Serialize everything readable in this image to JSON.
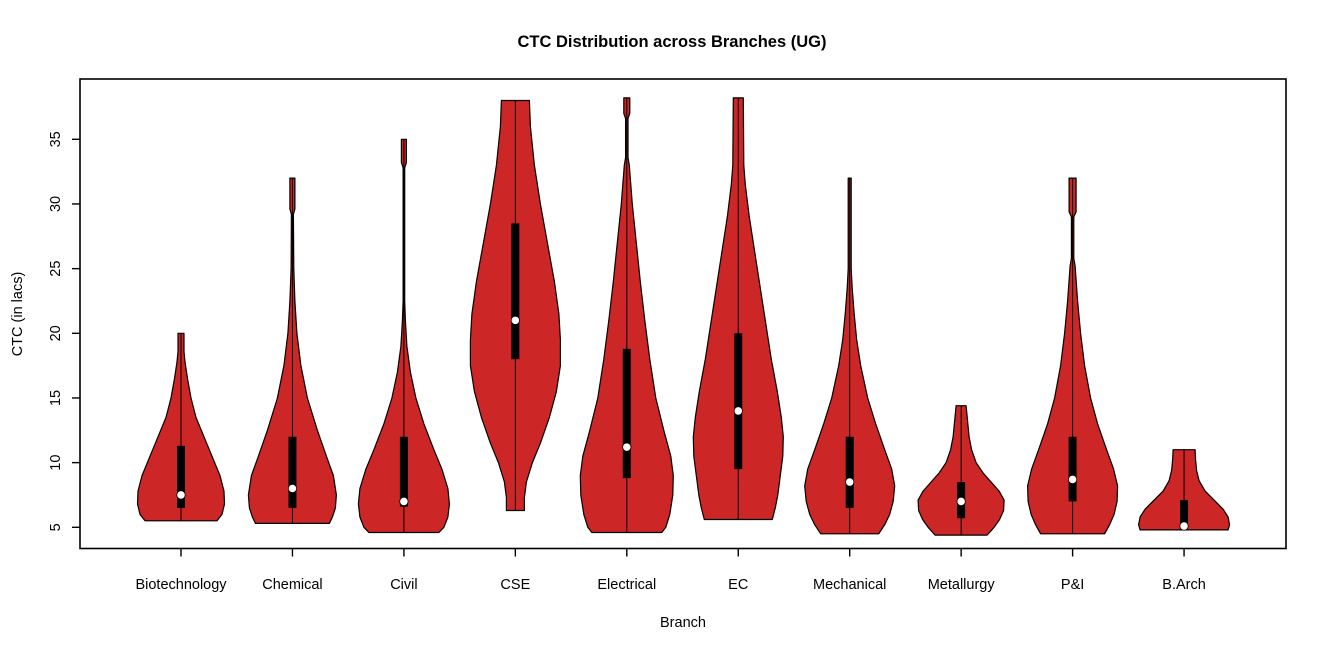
{
  "window": {
    "background": "#ffffff"
  },
  "chart_data": {
    "type": "violin",
    "title": "CTC Distribution across Branches (UG)",
    "xlabel": "Branch",
    "ylabel": "CTC (in lacs)",
    "yticks": [
      5,
      10,
      15,
      20,
      25,
      30,
      35
    ],
    "ylim_drawn": [
      3.4,
      39.7
    ],
    "grid": false,
    "legend": "none",
    "violin_fill": "#CD2626",
    "violin_border": "#000000",
    "median_dot_color": "#ffffff",
    "box_color": "#000000",
    "categories": [
      "Biotechnology",
      "Chemical",
      "Civil",
      "CSE",
      "Electrical",
      "EC",
      "Mechanical",
      "Metallurgy",
      "P&I",
      "B.Arch"
    ],
    "series": [
      {
        "name": "Biotechnology",
        "stats": {
          "min": 5.5,
          "q1": 6.5,
          "median": 7.5,
          "q3": 11.3,
          "max": 20
        },
        "profile": [
          [
            20,
            3
          ],
          [
            18.6,
            3
          ],
          [
            17.8,
            4
          ],
          [
            16.5,
            6.5
          ],
          [
            15,
            10
          ],
          [
            13.5,
            15
          ],
          [
            12,
            23
          ],
          [
            10.5,
            31
          ],
          [
            9,
            39
          ],
          [
            7.8,
            43
          ],
          [
            6.8,
            43.5
          ],
          [
            6,
            41
          ],
          [
            5.5,
            36
          ]
        ]
      },
      {
        "name": "Chemical",
        "stats": {
          "min": 5.3,
          "q1": 6.5,
          "median": 8,
          "q3": 12,
          "max": 32
        },
        "profile": [
          [
            32,
            2.5
          ],
          [
            29.6,
            2.5
          ],
          [
            29.2,
            1
          ],
          [
            25,
            1.3
          ],
          [
            22.5,
            2.5
          ],
          [
            20,
            4.5
          ],
          [
            17.5,
            8.5
          ],
          [
            15,
            15
          ],
          [
            12.5,
            25
          ],
          [
            10.5,
            34
          ],
          [
            9,
            41
          ],
          [
            7.5,
            44
          ],
          [
            6.5,
            43
          ],
          [
            5.8,
            40
          ],
          [
            5.3,
            37
          ]
        ]
      },
      {
        "name": "Civil",
        "stats": {
          "min": 4.6,
          "q1": 6.6,
          "median": 7,
          "q3": 12,
          "max": 35
        },
        "profile": [
          [
            35,
            2.5
          ],
          [
            33.2,
            2.5
          ],
          [
            32.8,
            0.8
          ],
          [
            22.5,
            0.8
          ],
          [
            21,
            1.5
          ],
          [
            19,
            3
          ],
          [
            17,
            6.5
          ],
          [
            15,
            12
          ],
          [
            13,
            20
          ],
          [
            11,
            30
          ],
          [
            9.5,
            38
          ],
          [
            8,
            44
          ],
          [
            6.8,
            45.5
          ],
          [
            5.8,
            44
          ],
          [
            5,
            40
          ],
          [
            4.6,
            35
          ]
        ]
      },
      {
        "name": "CSE",
        "stats": {
          "min": 6.3,
          "q1": 18,
          "median": 21,
          "q3": 28.5,
          "max": 38
        },
        "profile": [
          [
            38,
            14
          ],
          [
            36,
            15
          ],
          [
            33,
            19
          ],
          [
            30,
            25
          ],
          [
            27,
            32
          ],
          [
            24,
            39
          ],
          [
            21.5,
            43.5
          ],
          [
            19.5,
            45
          ],
          [
            17.5,
            45
          ],
          [
            15.5,
            41
          ],
          [
            13.5,
            34
          ],
          [
            11.5,
            25
          ],
          [
            10,
            17
          ],
          [
            8.5,
            11
          ],
          [
            7.3,
            9
          ],
          [
            6.3,
            9
          ]
        ]
      },
      {
        "name": "Electrical",
        "stats": {
          "min": 4.6,
          "q1": 8.8,
          "median": 11.2,
          "q3": 18.8,
          "max": 38
        },
        "profile": [
          [
            38.2,
            3
          ],
          [
            37,
            3
          ],
          [
            36.6,
            1.2
          ],
          [
            33.6,
            1.2
          ],
          [
            33,
            2.5
          ],
          [
            30,
            5.5
          ],
          [
            27,
            9.5
          ],
          [
            24,
            13.5
          ],
          [
            21,
            18
          ],
          [
            18,
            23
          ],
          [
            15,
            29
          ],
          [
            12.5,
            37
          ],
          [
            10.5,
            44
          ],
          [
            9,
            46.5
          ],
          [
            7.5,
            46
          ],
          [
            6,
            43
          ],
          [
            5,
            39
          ],
          [
            4.6,
            35
          ]
        ]
      },
      {
        "name": "EC",
        "stats": {
          "min": 5.6,
          "q1": 9.5,
          "median": 14,
          "q3": 20,
          "max": 38
        },
        "profile": [
          [
            38.2,
            5
          ],
          [
            33,
            5.5
          ],
          [
            31.5,
            7
          ],
          [
            29,
            11
          ],
          [
            26.5,
            16
          ],
          [
            24,
            21
          ],
          [
            21,
            27
          ],
          [
            18,
            33
          ],
          [
            15.5,
            39
          ],
          [
            13.5,
            43
          ],
          [
            12,
            45
          ],
          [
            10.5,
            44.5
          ],
          [
            9,
            42
          ],
          [
            7.5,
            39.5
          ],
          [
            6.5,
            37
          ],
          [
            5.6,
            34
          ]
        ]
      },
      {
        "name": "Mechanical",
        "stats": {
          "min": 4.5,
          "q1": 6.5,
          "median": 8.5,
          "q3": 12,
          "max": 32
        },
        "profile": [
          [
            32,
            1.5
          ],
          [
            25,
            1.5
          ],
          [
            23.5,
            2.5
          ],
          [
            21.5,
            4.5
          ],
          [
            19.5,
            7
          ],
          [
            17.5,
            11
          ],
          [
            15,
            18
          ],
          [
            13,
            26
          ],
          [
            11,
            35
          ],
          [
            9.5,
            42
          ],
          [
            8.2,
            45
          ],
          [
            7,
            43.5
          ],
          [
            6,
            40
          ],
          [
            5.2,
            35
          ],
          [
            4.5,
            29
          ]
        ]
      },
      {
        "name": "Metallurgy",
        "stats": {
          "min": 4.4,
          "q1": 5.7,
          "median": 7,
          "q3": 8.5,
          "max": 14.4
        },
        "profile": [
          [
            14.4,
            5
          ],
          [
            13.2,
            6.5
          ],
          [
            12,
            8
          ],
          [
            11,
            10.5
          ],
          [
            10,
            15
          ],
          [
            9.2,
            22
          ],
          [
            8.5,
            30
          ],
          [
            7.8,
            38
          ],
          [
            7.1,
            43
          ],
          [
            6.3,
            42.5
          ],
          [
            5.6,
            38.5
          ],
          [
            5,
            33
          ],
          [
            4.4,
            26
          ]
        ]
      },
      {
        "name": "P&I",
        "stats": {
          "min": 4.5,
          "q1": 7,
          "median": 8.7,
          "q3": 12,
          "max": 32
        },
        "profile": [
          [
            32,
            3.5
          ],
          [
            29.4,
            3.5
          ],
          [
            29,
            1.2
          ],
          [
            25.8,
            1.2
          ],
          [
            25.2,
            2.5
          ],
          [
            22.5,
            5
          ],
          [
            20,
            8
          ],
          [
            17.5,
            12
          ],
          [
            15,
            18
          ],
          [
            13,
            25
          ],
          [
            11,
            34
          ],
          [
            9.5,
            41
          ],
          [
            8.2,
            45
          ],
          [
            7,
            44.5
          ],
          [
            6,
            41.5
          ],
          [
            5.2,
            37
          ],
          [
            4.5,
            32
          ]
        ]
      },
      {
        "name": "B.Arch",
        "stats": {
          "min": 4.8,
          "q1": 5.2,
          "median": 5.1,
          "q3": 7.1,
          "max": 11
        },
        "profile": [
          [
            11,
            11
          ],
          [
            10.2,
            11.5
          ],
          [
            9.4,
            12.5
          ],
          [
            8.6,
            15
          ],
          [
            7.8,
            21
          ],
          [
            7.1,
            30
          ],
          [
            6.4,
            39
          ],
          [
            5.8,
            44
          ],
          [
            5.2,
            45.5
          ],
          [
            4.8,
            44
          ]
        ]
      }
    ]
  }
}
